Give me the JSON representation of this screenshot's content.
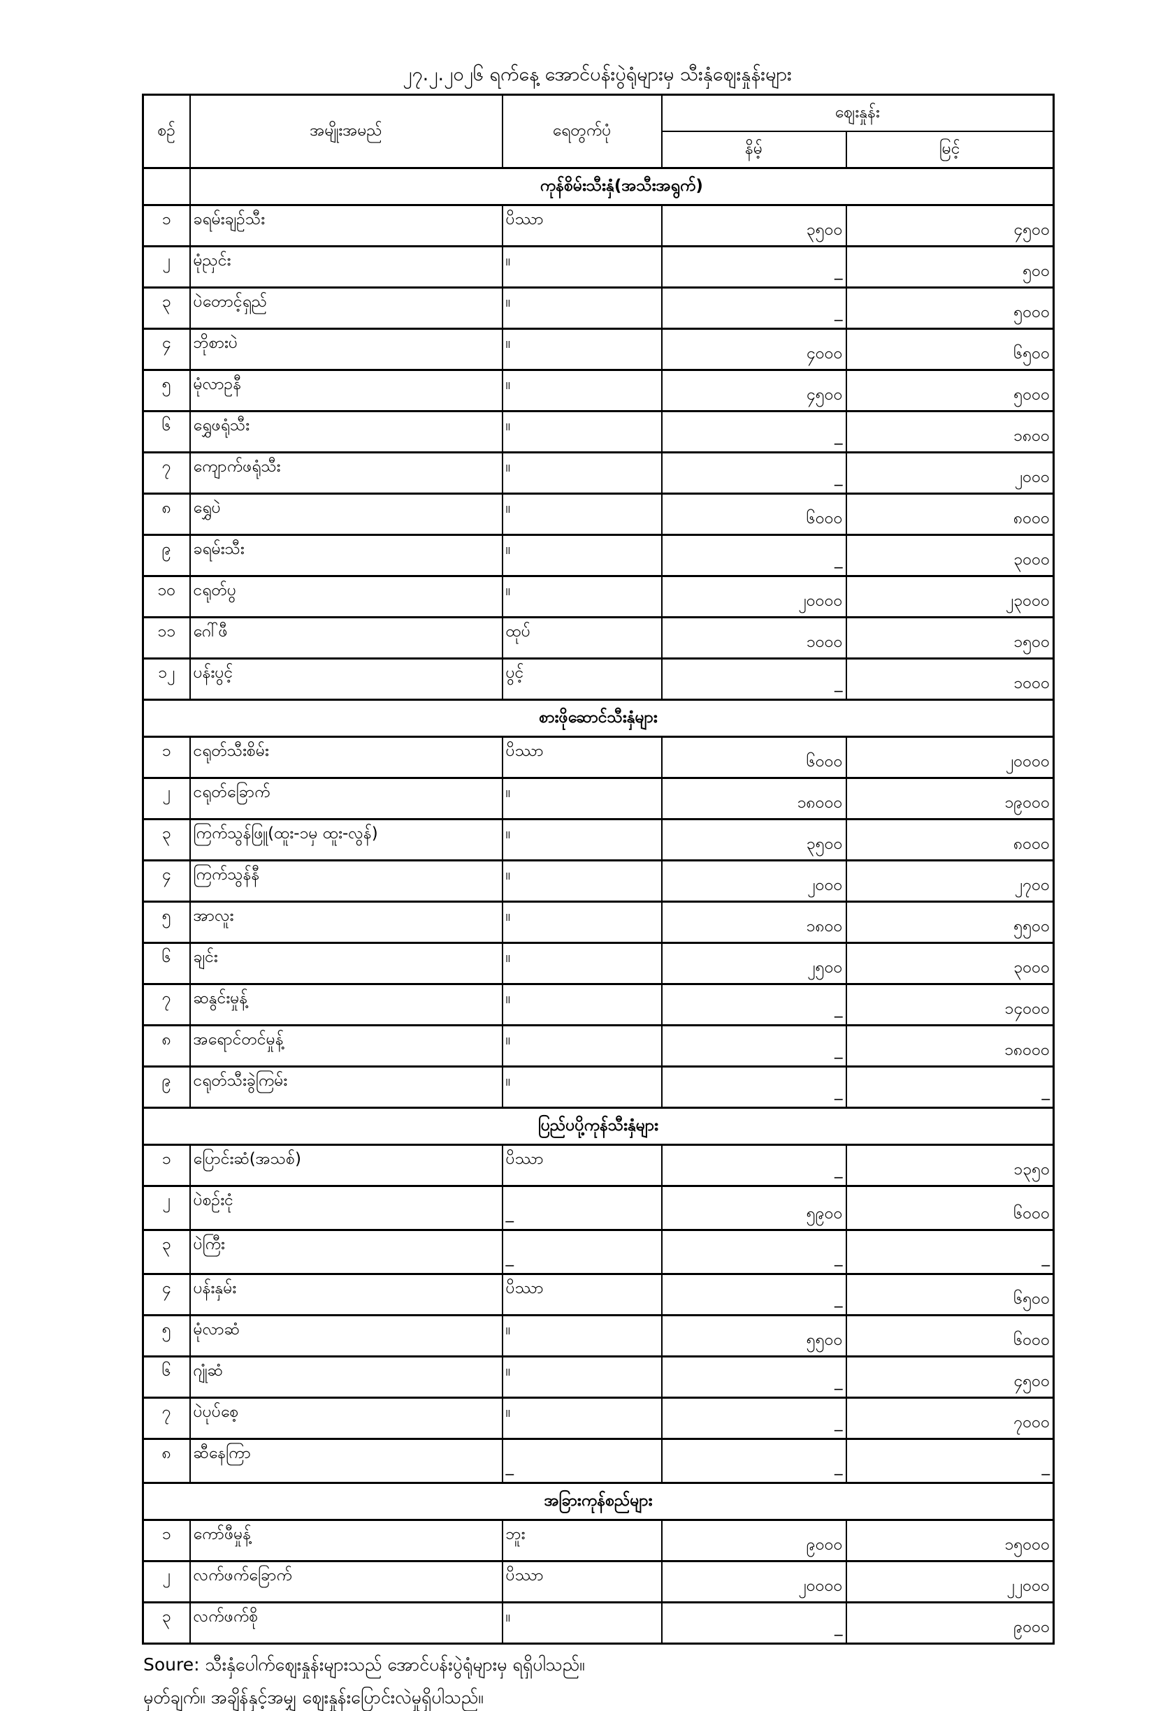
{
  "title": "၂၇.၂.၂၀၂၆ ရက်နေ့ အောင်ပန်းပွဲရုံများမှ သီးနှံဈေးနှုန်းများ",
  "headers": {
    "no": "စဉ်",
    "name": "အမျိုးအမည်",
    "unit": "ရေတွက်ပုံ",
    "price": "ဈေးနှုန်း",
    "low": "နိမ့်",
    "high": "မြင့်"
  },
  "sections": [
    {
      "title": "ကုန်စိမ်းသီးနှံ(အသီးအရွက်)",
      "rows": [
        [
          "၁",
          "ခရမ်းချဉ်သီး",
          "ပိဿာ",
          "၃၅၀၀",
          "၄၅၀၀"
        ],
        [
          "၂",
          "မုံညှင်း",
          "။",
          "_",
          "၅၀၀"
        ],
        [
          "၃",
          "ပဲတောင့်ရှည်",
          "။",
          "_",
          "၅၀၀၀"
        ],
        [
          "၄",
          "ဘိုစားပဲ",
          "။",
          "၄၀၀၀",
          "၆၅၀၀"
        ],
        [
          "၅",
          "မုံလာဥနီ",
          "။",
          "၄၅၀၀",
          "၅၀၀၀"
        ],
        [
          "၆",
          "ရွှေဖရုံသီး",
          "။",
          "_",
          "၁၈၀၀"
        ],
        [
          "၇",
          "ကျောက်ဖရုံသီး",
          "။",
          "_",
          "၂၀၀၀"
        ],
        [
          "၈",
          "ရွှေပဲ",
          "။",
          "၆၀၀၀",
          "၈၀၀၀"
        ],
        [
          "၉",
          "ခရမ်းသီး",
          "။",
          "_",
          "၃၀၀၀"
        ],
        [
          "၁၀",
          "ငရုတ်ပွ",
          "။",
          "၂၀၀၀၀",
          "၂၃၀၀၀"
        ],
        [
          "၁၁",
          "ဂေါ်ဖီ",
          "ထုပ်",
          "၁၀၀၀",
          "၁၅၀၀"
        ],
        [
          "၁၂",
          "ပန်းပွင့်",
          "ပွင့်",
          "_",
          "၁၀၀၀"
        ]
      ]
    },
    {
      "title": "စားဖိုဆောင်သီးနှံများ",
      "rows": [
        [
          "၁",
          "ငရုတ်သီးစိမ်း",
          "ပိဿာ",
          "၆၀၀၀",
          "၂၀၀၀၀"
        ],
        [
          "၂",
          "ငရုတ်ခြောက်",
          "။",
          "၁၈၀၀၀",
          "၁၉၀၀၀"
        ],
        [
          "၃",
          "ကြက်သွန်ဖြူ(ထူး-၁မှ ထူး-လွန်)",
          "။",
          "၃၅၀၀",
          "၈၀၀၀"
        ],
        [
          "၄",
          "ကြက်သွန်နီ",
          "။",
          "၂၀၀၀",
          "၂၇၀၀"
        ],
        [
          "၅",
          "အာလူး",
          "။",
          "၁၈၀၀",
          "၅၅၀၀"
        ],
        [
          "၆",
          "ချင်း",
          "။",
          "၂၅၀၀",
          "၃၀၀၀"
        ],
        [
          "၇",
          "ဆနွင်းမှုန့်",
          "။",
          "_",
          "၁၄၀၀၀"
        ],
        [
          "၈",
          "အရောင်တင်မှုန့်",
          "။",
          "_",
          "၁၈၀၀၀"
        ],
        [
          "၉",
          "ငရုတ်သီးခွဲကြမ်း",
          "။",
          "_",
          "_"
        ]
      ]
    },
    {
      "title": "ပြည်ပပို့ကုန်သီးနှံများ",
      "rows": [
        [
          "၁",
          "ပြောင်းဆံ(အသစ်)",
          "ပိဿာ",
          "_",
          "၁၃၅၀"
        ],
        [
          "၂",
          "ပဲစဉ်းငုံ",
          "_",
          "၅၉၀၀",
          "၆၀၀၀"
        ],
        [
          "၃",
          "ပဲကြီး",
          "_",
          "_",
          "_"
        ],
        [
          "၄",
          "ပန်းနှမ်း",
          "ပိဿာ",
          "_",
          "၆၅၀၀"
        ],
        [
          "၅",
          "မုံလာဆံ",
          "။",
          "၅၅၀၀",
          "၆၀၀၀"
        ],
        [
          "၆",
          "ဂျုံဆံ",
          "။",
          "_",
          "၄၅၀၀"
        ],
        [
          "၇",
          "ပဲပုပ်စေ့",
          "။",
          "_",
          "၇၀၀၀"
        ],
        [
          "၈",
          "ဆီနေကြာ",
          "_",
          "_",
          "_"
        ]
      ]
    },
    {
      "title": "အခြားကုန်စည်များ",
      "rows": [
        [
          "၁",
          "ကော်ဖီမှုန့်",
          "ဘူး",
          "၉၀၀၀",
          "၁၅၀၀၀"
        ],
        [
          "၂",
          "လက်ဖက်ခြောက်",
          "ပိဿာ",
          "၂၀၀၀၀",
          "၂၂၀၀၀"
        ],
        [
          "၃",
          "လက်ဖက်စို",
          "။",
          "_",
          "၉၀၀၀"
        ]
      ]
    }
  ],
  "footer": {
    "source": "Soure: သီးနှံပေါက်ဈေးနှုန်းများသည် အောင်ပန်းပွဲရုံများမှ ရရှိပါသည်။",
    "note": "မှတ်ချက်။  အချိန်နှင့်အမျှ ဈေးနှုန်းပြောင်းလဲမှုရှိပါသည်။"
  }
}
